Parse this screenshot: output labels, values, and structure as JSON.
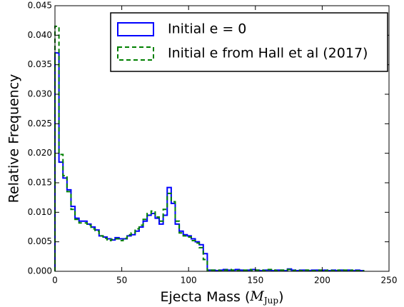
{
  "chart_data": {
    "type": "histogram",
    "xlabel": [
      "Ejecta Mass (",
      "M",
      "Jup",
      ")"
    ],
    "ylabel": "Relative Frequency",
    "bins": [
      0,
      3,
      6,
      9,
      12,
      15,
      18,
      21,
      24,
      27,
      30,
      33,
      36,
      39,
      42,
      45,
      48,
      51,
      54,
      57,
      60,
      63,
      66,
      69,
      72,
      75,
      78,
      81,
      84,
      87,
      90,
      93,
      96,
      99,
      102,
      105,
      108,
      111,
      114,
      117,
      120,
      123,
      126,
      129,
      132,
      135,
      138,
      141,
      144,
      147,
      150,
      153,
      156,
      159,
      162,
      165,
      168,
      171,
      174,
      177,
      180,
      183,
      186,
      189,
      192,
      195,
      198,
      201,
      204,
      207,
      210,
      213,
      216,
      219,
      222,
      225,
      228,
      231
    ],
    "series": [
      {
        "name": "Initial e = 0",
        "color": "#0000ff",
        "dash": false,
        "values": [
          0.037,
          0.0185,
          0.0158,
          0.0138,
          0.011,
          0.009,
          0.0085,
          0.0085,
          0.008,
          0.0075,
          0.007,
          0.006,
          0.0058,
          0.0055,
          0.0053,
          0.0057,
          0.0055,
          0.0055,
          0.006,
          0.0062,
          0.0068,
          0.0075,
          0.0085,
          0.0095,
          0.0098,
          0.009,
          0.008,
          0.0095,
          0.0142,
          0.0115,
          0.008,
          0.0068,
          0.0062,
          0.006,
          0.0055,
          0.005,
          0.0045,
          0.003,
          0.0002,
          0.0002,
          0.0001,
          0.0002,
          0.0003,
          0.0002,
          0.0002,
          0.0003,
          0.0002,
          0.0001,
          0.0002,
          0.0003,
          0.0002,
          0.0001,
          0.0002,
          0.0002,
          0.0001,
          0.0002,
          0.0002,
          0.0001,
          0.0004,
          0.0002,
          0.0001,
          0.0002,
          0.0002,
          0.0001,
          0.0002,
          0.0002,
          0.0001,
          0.0002,
          0.0001,
          0.0002,
          0.0001,
          0.0002,
          0.0001,
          0.0002,
          0.0001,
          0.0002,
          0.0001
        ]
      },
      {
        "name": "Initial e from Hall et al (2017)",
        "color": "#008000",
        "dash": true,
        "values": [
          0.0415,
          0.0198,
          0.0162,
          0.0135,
          0.0105,
          0.0088,
          0.0082,
          0.0082,
          0.0078,
          0.0072,
          0.0068,
          0.006,
          0.0056,
          0.0052,
          0.0054,
          0.0055,
          0.0052,
          0.0056,
          0.0062,
          0.0065,
          0.0072,
          0.0078,
          0.0088,
          0.0098,
          0.0102,
          0.0092,
          0.0085,
          0.0105,
          0.0132,
          0.0118,
          0.0085,
          0.0065,
          0.006,
          0.0058,
          0.0052,
          0.0048,
          0.004,
          0.002,
          0.0001,
          0.0002,
          0.0002,
          0.0001,
          0.0002,
          0.0003,
          0.0002,
          0.0001,
          0.0002,
          0.0002,
          0.0003,
          0.0001,
          0.0002,
          0.0002,
          0.0001,
          0.0003,
          0.0002,
          0.0001,
          0.0002,
          0.0002,
          0.0003,
          0.0001,
          0.0002,
          0.0001,
          0.0002,
          0.0002,
          0.0001,
          0.0002,
          0.0002,
          0.0001,
          0.0002,
          0.0001,
          0.0002,
          0.0001,
          0.0002,
          0.0001,
          0.0002,
          0.0001,
          0.0001
        ]
      }
    ],
    "xlim": [
      0,
      250
    ],
    "xticks": [
      0,
      50,
      100,
      150,
      200,
      250
    ],
    "ylim": [
      0,
      0.045
    ],
    "yticks": [
      {
        "value": 0,
        "label": "0.000"
      },
      {
        "value": 0.005,
        "label": "0.005"
      },
      {
        "value": 0.01,
        "label": "0.010"
      },
      {
        "value": 0.015,
        "label": "0.015"
      },
      {
        "value": 0.02,
        "label": "0.020"
      },
      {
        "value": 0.025,
        "label": "0.025"
      },
      {
        "value": 0.03,
        "label": "0.030"
      },
      {
        "value": 0.035,
        "label": "0.035"
      },
      {
        "value": 0.04,
        "label": "0.040"
      },
      {
        "value": 0.045,
        "label": "0.045"
      }
    ],
    "legend": "upper right"
  }
}
